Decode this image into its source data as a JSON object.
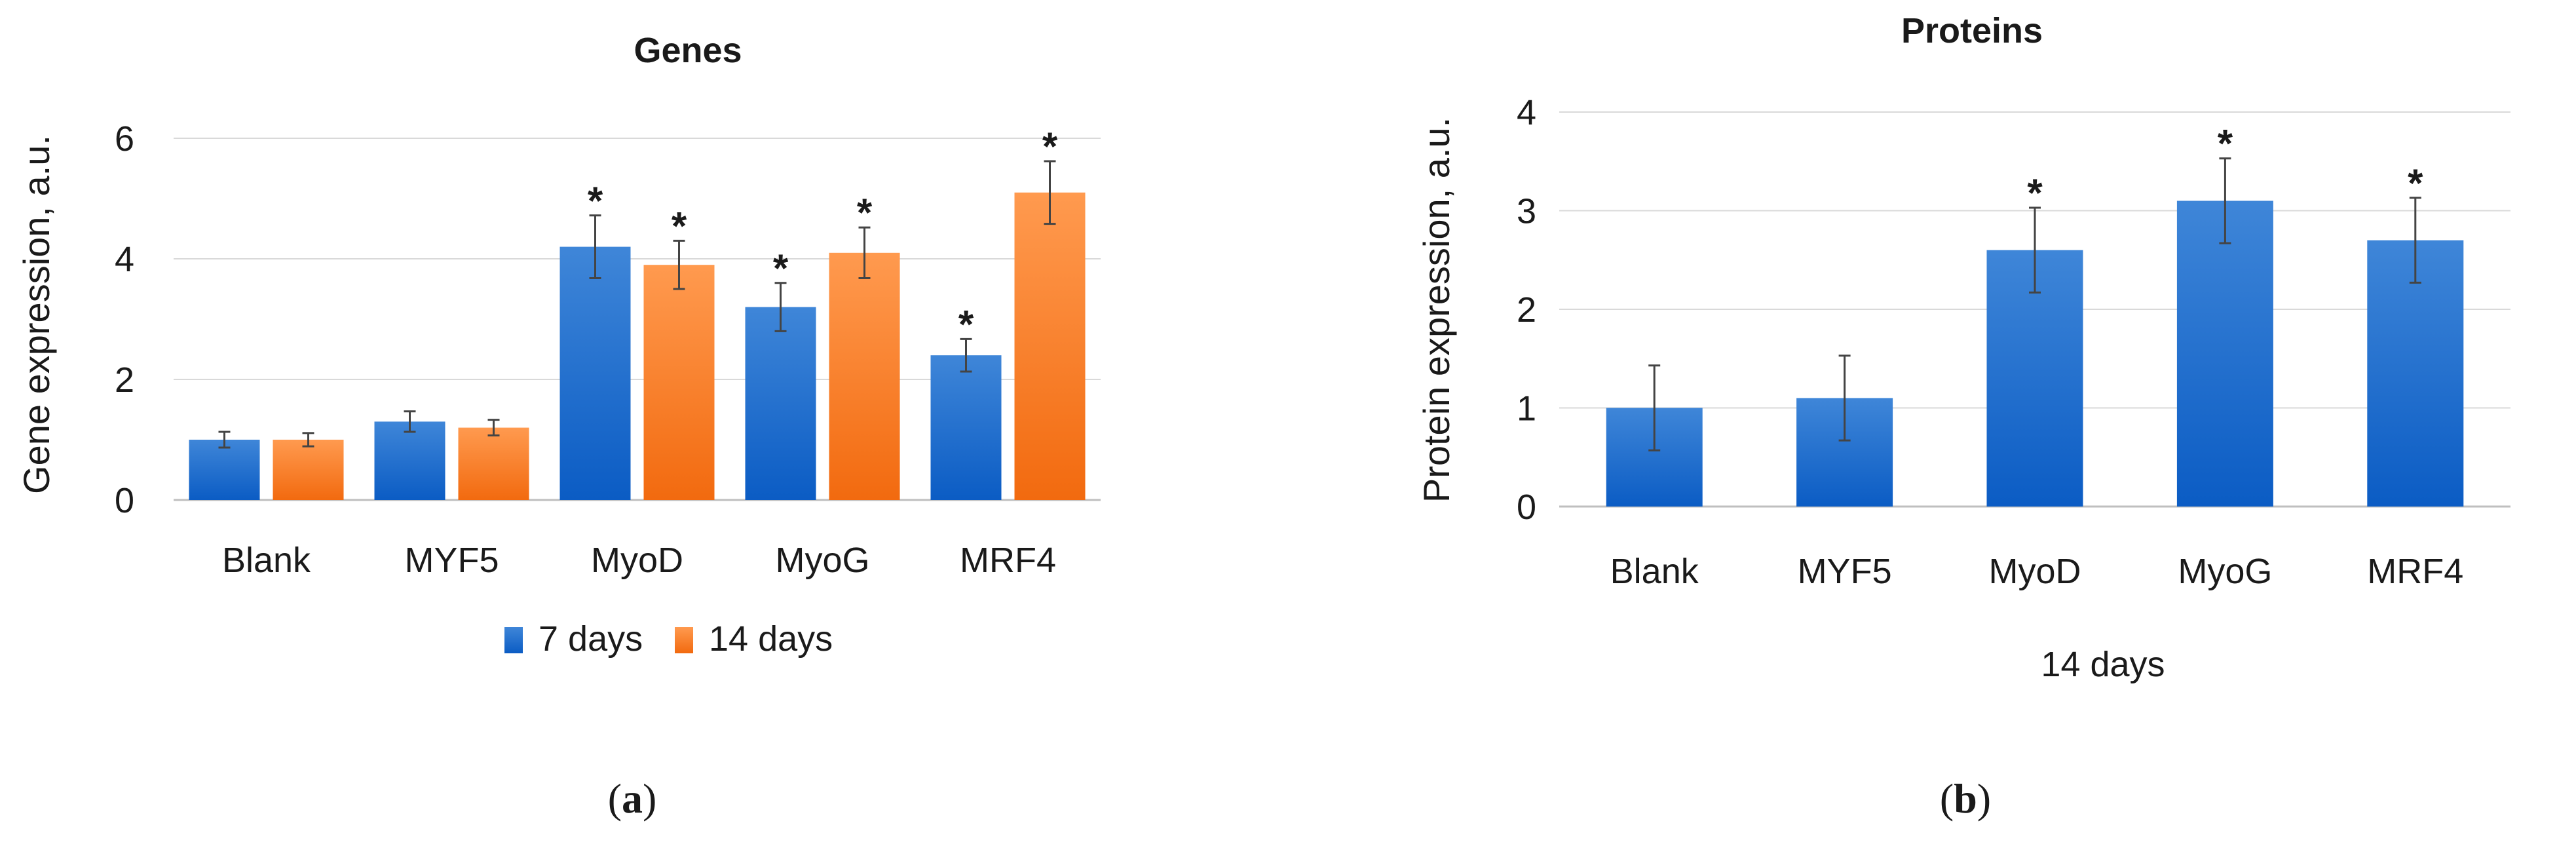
{
  "colors": {
    "series_7_days_top": "#3f86d8",
    "series_7_days_bottom": "#0b5cc4",
    "series_14_days_top": "#ff9a4f",
    "series_14_days_bottom": "#f26a0f",
    "grid": "#d9d9d9",
    "error_bar": "#444444"
  },
  "chart_data": [
    {
      "type": "bar",
      "title": "Genes",
      "xlabel": "",
      "ylabel": "Gene expression, a.u.",
      "ylim": [
        0,
        6
      ],
      "yticks": [
        "0",
        "2",
        "4",
        "6"
      ],
      "grid": true,
      "categories": [
        "Blank",
        "MYF5",
        "MyoD",
        "MyoG",
        "MRF4"
      ],
      "series": [
        {
          "name": "7 days",
          "values": [
            1.0,
            1.3,
            4.2,
            3.2,
            2.4
          ],
          "errors": [
            0.13,
            0.17,
            0.52,
            0.4,
            0.27
          ],
          "significant": [
            false,
            false,
            true,
            true,
            true
          ]
        },
        {
          "name": "14 days",
          "values": [
            1.0,
            1.2,
            3.9,
            4.1,
            5.1
          ],
          "errors": [
            0.11,
            0.13,
            0.4,
            0.42,
            0.52
          ],
          "significant": [
            false,
            false,
            true,
            true,
            true
          ]
        }
      ],
      "legend": "bottom",
      "panel_label": "a"
    },
    {
      "type": "bar",
      "title": "Proteins",
      "xlabel": "14 days",
      "ylabel": "Protein expression, a.u.",
      "ylim": [
        0,
        4
      ],
      "yticks": [
        "0",
        "1",
        "2",
        "3",
        "4"
      ],
      "grid": true,
      "categories": [
        "Blank",
        "MYF5",
        "MyoD",
        "MyoG",
        "MRF4"
      ],
      "series": [
        {
          "name": "14 days",
          "values": [
            1.0,
            1.1,
            2.6,
            3.1,
            2.7
          ],
          "errors": [
            0.43,
            0.43,
            0.43,
            0.43,
            0.43
          ],
          "significant": [
            false,
            false,
            true,
            true,
            true
          ]
        }
      ],
      "legend": "none",
      "panel_label": "b"
    }
  ]
}
